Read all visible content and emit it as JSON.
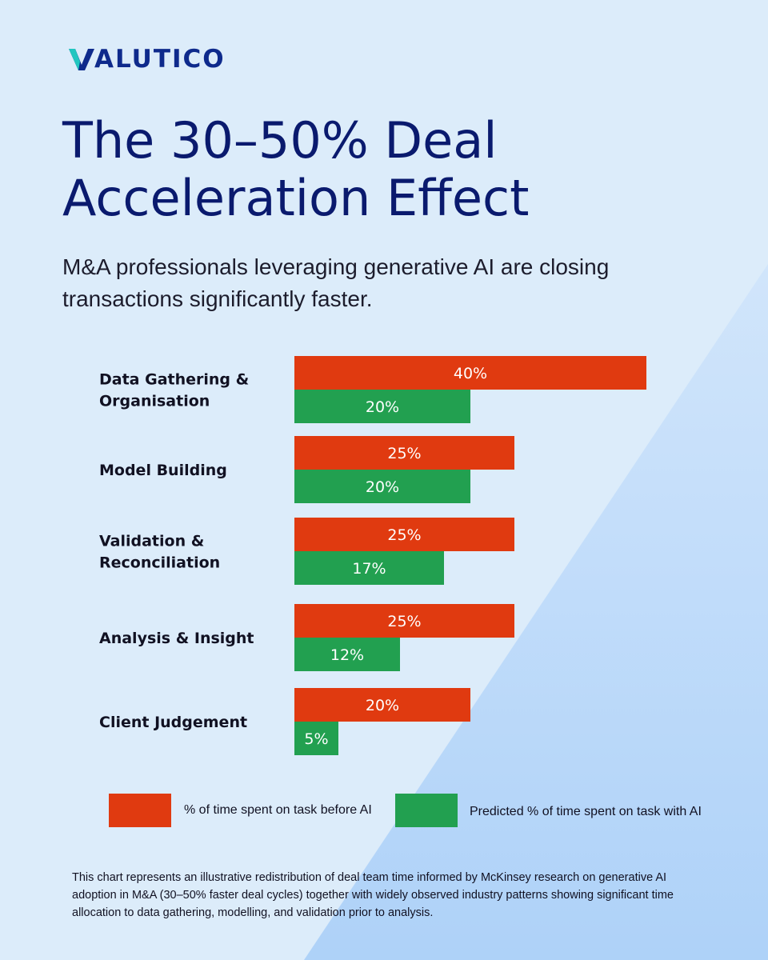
{
  "brand": {
    "logo_text": "ALUTICO",
    "logo_name": "VALUTICO"
  },
  "title_lines": [
    "The 30–50% Deal",
    "Acceleration Effect"
  ],
  "subtitle_lines": [
    "M&A professionals leveraging generative AI are closing",
    "transactions significantly faster."
  ],
  "colors": {
    "before": "#e03a10",
    "with_ai": "#22a050",
    "title": "#0a1a6e",
    "background": "#dcecfa"
  },
  "legend": {
    "before": "% of time spent on task before AI",
    "with_ai": "Predicted % of time spent on task with AI"
  },
  "footnote_lines": [
    "This chart represents an illustrative redistribution of deal team time informed by McKinsey research on generative AI",
    "adoption in M&A (30–50% faster deal cycles) together with widely observed industry patterns showing significant time",
    "allocation to data gathering, modelling, and validation prior to analysis."
  ],
  "chart_data": {
    "type": "bar",
    "orientation": "horizontal",
    "categories": [
      [
        "Data Gathering &",
        "Organisation"
      ],
      [
        "Model Building"
      ],
      [
        "Validation &",
        "Reconciliation"
      ],
      [
        "Analysis & Insight"
      ],
      [
        "Client Judgement"
      ]
    ],
    "series": [
      {
        "name": "% of time spent on task before AI",
        "values": [
          40,
          25,
          25,
          25,
          20
        ],
        "labels": [
          "40%",
          "25%",
          "25%",
          "25%",
          "20%"
        ]
      },
      {
        "name": "Predicted % of time spent on task with AI",
        "values": [
          20,
          20,
          17,
          12,
          5
        ],
        "labels": [
          "20%",
          "20%",
          "17%",
          "12%",
          "5%"
        ]
      }
    ],
    "grid": false,
    "legend_position": "bottom"
  }
}
